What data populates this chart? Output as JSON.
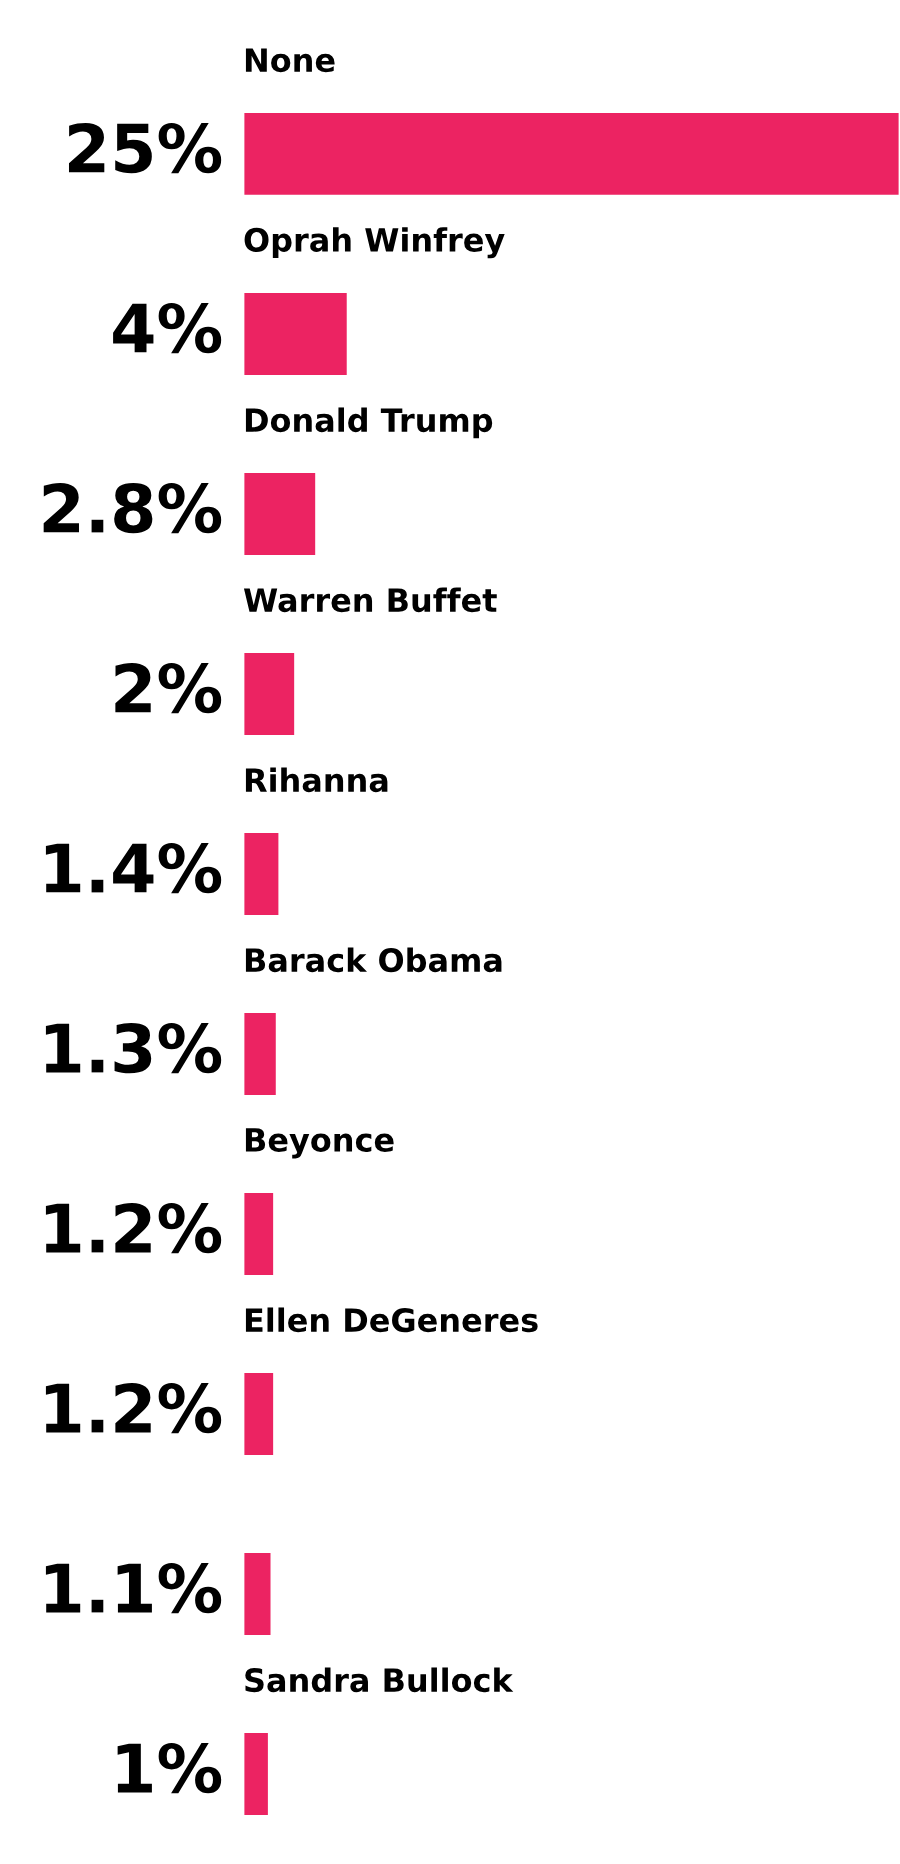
{
  "chart_data": {
    "type": "bar",
    "orientation": "horizontal",
    "categories": [
      "None",
      "Oprah Winfrey",
      "Donald Trump",
      "Warren Buffet",
      "Rihanna",
      "Barack Obama",
      "Beyonce",
      "Ellen DeGeneres",
      null,
      "Sandra Bullock"
    ],
    "values": [
      25,
      4,
      2.8,
      2,
      1.4,
      1.3,
      1.2,
      1.2,
      1.1,
      1
    ],
    "value_labels": [
      "25%",
      "4%",
      "2.8%",
      "2%",
      "1.4%",
      "1.3%",
      "1.2%",
      "1.2%",
      "1.1%",
      "1%"
    ],
    "color": "#ec2362",
    "tick_labels": false
  }
}
